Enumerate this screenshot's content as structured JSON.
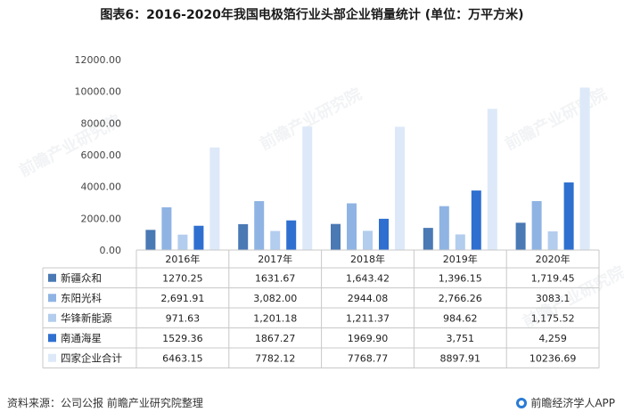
{
  "title": "图表6：2016-2020年我国电极箔行业头部企业销量统计 (单位：万平方米)",
  "footer": {
    "source": "资料来源：公司公报 前瞻产业研究院整理",
    "brand": "前瞻经济学人APP"
  },
  "watermark": "前瞻产业研究院",
  "chart_data": {
    "type": "bar",
    "title": "图表6：2016-2020年我国电极箔行业头部企业销量统计 (单位：万平方米)",
    "categories": [
      "2016年",
      "2017年",
      "2018年",
      "2019年",
      "2020年"
    ],
    "ylim": [
      0,
      12000
    ],
    "yticks": [
      "0.00",
      "2000.00",
      "4000.00",
      "6000.00",
      "8000.00",
      "10000.00",
      "12000.00"
    ],
    "ytick_values": [
      0,
      2000,
      4000,
      6000,
      8000,
      10000,
      12000
    ],
    "grid": false,
    "legend": "table-below",
    "series": [
      {
        "name": "新疆众和",
        "color": "#4a79b4",
        "values": [
          1270.25,
          1631.67,
          1643.42,
          1396.15,
          1719.45
        ],
        "labels": [
          "1270.25",
          "1631.67",
          "1,643.42",
          "1,396.15",
          "1,719.45"
        ]
      },
      {
        "name": "东阳光科",
        "color": "#8fb4e3",
        "values": [
          2691.91,
          3082.0,
          2944.08,
          2766.26,
          3083.1
        ],
        "labels": [
          "2,691.91",
          "3,082.00",
          "2944.08",
          "2,766.26",
          "3083.1"
        ]
      },
      {
        "name": "华锋新能源",
        "color": "#b3cdee",
        "values": [
          971.63,
          1201.18,
          1211.37,
          984.62,
          1175.52
        ],
        "labels": [
          "971.63",
          "1,201.18",
          "1,211.37",
          "984.62",
          "1,175.52"
        ]
      },
      {
        "name": "南通海星",
        "color": "#2f6fd0",
        "values": [
          1529.36,
          1867.27,
          1969.9,
          3751,
          4259
        ],
        "labels": [
          "1529.36",
          "1867.27",
          "1969.90",
          "3,751",
          "4,259"
        ]
      },
      {
        "name": "四家企业合计",
        "color": "#dde9f8",
        "values": [
          6463.15,
          7782.12,
          7768.77,
          8897.91,
          10236.69
        ],
        "labels": [
          "6463.15",
          "7782.12",
          "7768.77",
          "8897.91",
          "10236.69"
        ]
      }
    ]
  }
}
